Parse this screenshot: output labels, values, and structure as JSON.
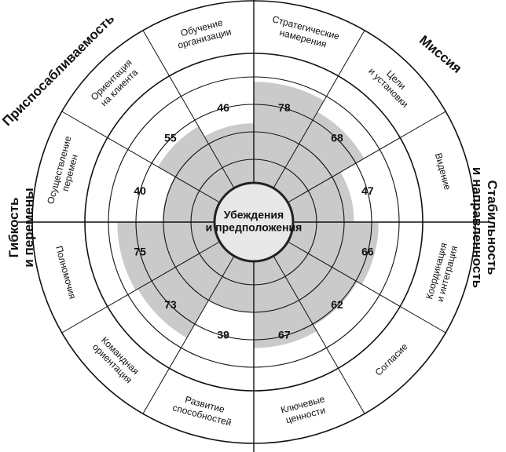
{
  "center": {
    "label": [
      "Убеждения",
      "и предположения"
    ]
  },
  "quadrants": [
    {
      "label": [
        "Приспосабливаемость"
      ]
    },
    {
      "label": [
        "Миссия"
      ]
    },
    {
      "label": [
        "Стабильность",
        "и направленность"
      ]
    },
    {
      "label": [
        "Гибкость",
        "и перемены"
      ]
    }
  ],
  "segments": [
    {
      "label": [
        "Стратегические",
        "намерения"
      ],
      "value": 78
    },
    {
      "label": [
        "Цели",
        "и установки"
      ],
      "value": 68
    },
    {
      "label": [
        "Видение"
      ],
      "value": 47
    },
    {
      "label": [
        "Координация",
        "и интеграция"
      ],
      "value": 66
    },
    {
      "label": [
        "Согласие"
      ],
      "value": 62
    },
    {
      "label": [
        "Ключевые",
        "ценности"
      ],
      "value": 67
    },
    {
      "label": [
        "Развитие",
        "способностей"
      ],
      "value": 39
    },
    {
      "label": [
        "Командная",
        "ориентация"
      ],
      "value": 73
    },
    {
      "label": [
        "Полномочия"
      ],
      "value": 75
    },
    {
      "label": [
        "Осуществление",
        "перемен"
      ],
      "value": 40
    },
    {
      "label": [
        "Ориентация",
        "на клиента"
      ],
      "value": 55
    },
    {
      "label": [
        "Обучение",
        "организации"
      ],
      "value": 46
    }
  ]
}
